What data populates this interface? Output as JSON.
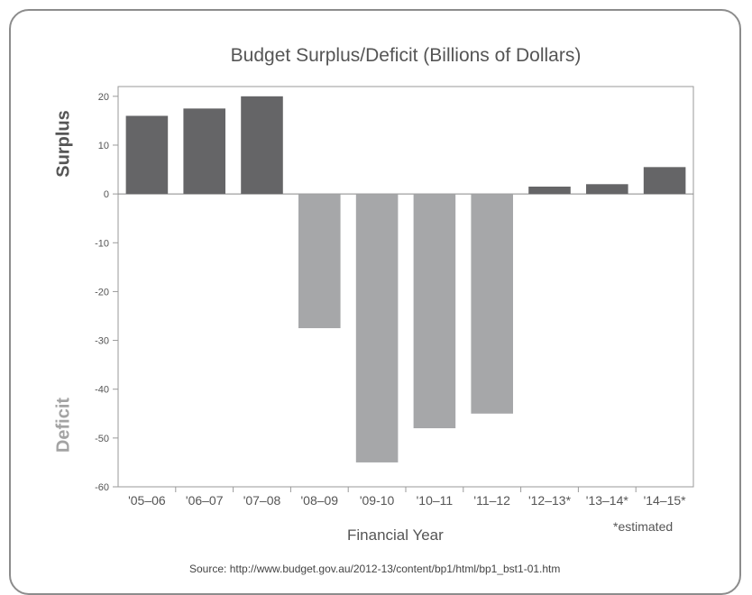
{
  "chart_data": {
    "type": "bar",
    "title": "Budget Surplus/Deficit (Billions of Dollars)",
    "xlabel": "Financial Year",
    "ylabel_top": "Surplus",
    "ylabel_bottom": "Deficit",
    "categories": [
      "'05–06",
      "'06–07",
      "'07–08",
      "'08–09",
      "'09-10",
      "'10–11",
      "'11–12",
      "'12–13*",
      "'13–14*",
      "'14–15*"
    ],
    "values": [
      16,
      17.5,
      20,
      -27.5,
      -55,
      -48,
      -45,
      1.5,
      2,
      5.5
    ],
    "ylim": [
      -60,
      22
    ],
    "yticks": [
      20,
      10,
      0,
      -10,
      -20,
      -30,
      -40,
      -50,
      -60
    ],
    "grid": false,
    "colors": {
      "positive": "#656567",
      "negative": "#a6a7a9",
      "axis": "#9a9a9a"
    },
    "annotations": [
      "*estimated"
    ]
  },
  "source": "Source: http://www.budget.gov.au/2012-13/content/bp1/html/bp1_bst1-01.htm"
}
